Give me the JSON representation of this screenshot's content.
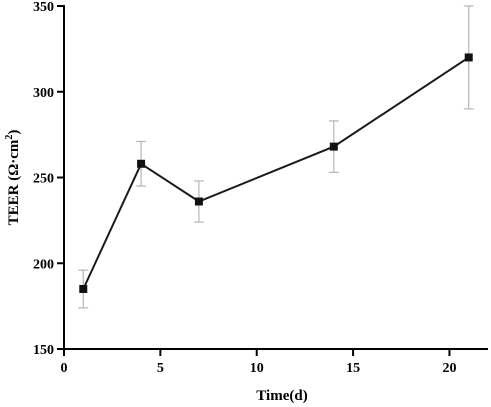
{
  "chart_data": {
    "type": "line",
    "xlabel": "Time(d)",
    "ylabel": "TEER (Ω·cm²)",
    "ylabel_parts": {
      "main": "TEER (Ω·cm",
      "sup": "2",
      "end": ")"
    },
    "xlim": [
      0,
      22
    ],
    "ylim": [
      150,
      350
    ],
    "x_ticks": [
      0,
      5,
      10,
      15,
      20
    ],
    "y_ticks": [
      150,
      200,
      250,
      300,
      350
    ],
    "grid": false,
    "series": [
      {
        "x": [
          1,
          4,
          7,
          14,
          21
        ],
        "y": [
          185,
          258,
          236,
          268,
          320
        ],
        "error": [
          11,
          13,
          12,
          15,
          30
        ],
        "color": "#1a1a1a",
        "marker": "square"
      }
    ]
  }
}
